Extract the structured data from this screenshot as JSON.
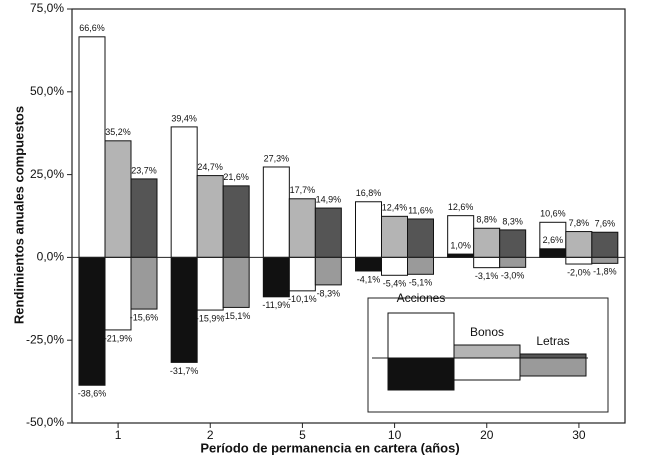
{
  "chart_data": {
    "type": "bar",
    "y_label": "Rendimientos anuales compuestos",
    "x_label": "Período de permanencia en cartera (años)",
    "categories": [
      "1",
      "2",
      "5",
      "10",
      "20",
      "30"
    ],
    "series": [
      {
        "name": "Acciones",
        "color": "#ffffff",
        "min_color": "#111111",
        "values": [
          66.6,
          39.4,
          27.3,
          16.8,
          12.6,
          10.6
        ],
        "value_labels": [
          "66,6%",
          "39,4%",
          "27,3%",
          "16,8%",
          "12,6%",
          "10,6%"
        ],
        "min_values": [
          -38.6,
          -31.7,
          -11.9,
          -4.1,
          1.0,
          2.6
        ],
        "min_value_labels": [
          "-38,6%",
          "-31,7%",
          "-11,9%",
          "-4,1%",
          "1,0%",
          "2,6%"
        ]
      },
      {
        "name": "Bonos",
        "color": "#b4b4b4",
        "min_color": "#ffffff",
        "values": [
          35.2,
          24.7,
          17.7,
          12.4,
          8.8,
          7.8
        ],
        "value_labels": [
          "35,2%",
          "24,7%",
          "17,7%",
          "12,4%",
          "8,8%",
          "7,8%"
        ],
        "min_values": [
          -21.9,
          -15.9,
          -10.1,
          -5.4,
          -3.1,
          -2.0
        ],
        "min_value_labels": [
          "-21,9%",
          "-15,9%",
          "-10,1%",
          "-5,4%",
          "-3,1%",
          "-2,0%"
        ]
      },
      {
        "name": "Letras",
        "color": "#555555",
        "min_color": "#9a9a9a",
        "values": [
          23.7,
          21.6,
          14.9,
          11.6,
          8.3,
          7.6
        ],
        "value_labels": [
          "23,7%",
          "21,6%",
          "14,9%",
          "11,6%",
          "8,3%",
          "7,6%"
        ],
        "min_values": [
          -15.6,
          -15.1,
          -8.3,
          -5.1,
          -3.0,
          -1.8
        ],
        "min_value_labels": [
          "-15,6%",
          "-15,1%",
          "-8,3%",
          "-5,1%",
          "-3,0%",
          "-1,8%"
        ]
      }
    ],
    "ylim": [
      -50,
      75
    ],
    "yticks": [
      {
        "value": -50,
        "label": "-50,0%"
      },
      {
        "value": -25,
        "label": "-25,0%"
      },
      {
        "value": 0,
        "label": "0,0%"
      },
      {
        "value": 25,
        "label": "25,0%"
      },
      {
        "value": 50,
        "label": "50,0%"
      },
      {
        "value": 75,
        "label": "75,0%"
      }
    ],
    "legend": "lower right"
  }
}
